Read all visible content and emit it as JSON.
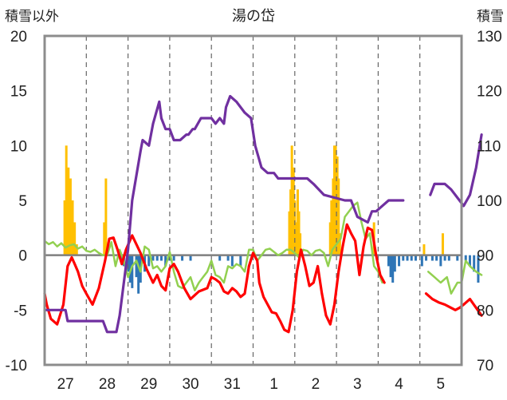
{
  "chart_data": {
    "type": "line",
    "title": "湯の岱",
    "left_axis": {
      "label": "積雪以外",
      "ylim": [
        -10,
        20
      ],
      "ticks": [
        "20",
        "15",
        "10",
        "5",
        "0",
        "-5",
        "-10"
      ]
    },
    "right_axis": {
      "label": "積雪",
      "ylim": [
        70,
        130
      ],
      "ticks": [
        "130",
        "120",
        "110",
        "100",
        "90",
        "80",
        "70"
      ]
    },
    "x_axis": {
      "xlim": [
        0,
        10
      ],
      "tick_labels": [
        "27",
        "28",
        "29",
        "30",
        "31",
        "1",
        "2",
        "3",
        "4",
        "5"
      ],
      "tick_positions": [
        0.5,
        1.5,
        2.5,
        3.5,
        4.5,
        5.5,
        6.5,
        7.5,
        8.5,
        9.5
      ]
    },
    "grid": "vertical dashed at day boundaries",
    "colors": {
      "snow_depth": "#7030a0",
      "temperature": "#ff0000",
      "dewpoint": "#92d050",
      "precip": "#ffc000",
      "negative_bars": "#2e75b6"
    },
    "series": [
      {
        "key": "snow_depth",
        "axis": "right",
        "x": [
          0.0,
          0.5,
          0.55,
          1.4,
          1.5,
          1.72,
          1.8,
          2.0,
          2.1,
          2.3,
          2.35,
          2.5,
          2.6,
          2.75,
          2.8,
          2.9,
          3.0,
          3.1,
          3.25,
          3.4,
          3.45,
          3.55,
          3.6,
          3.75,
          4.0,
          4.1,
          4.2,
          4.3,
          4.35,
          4.45,
          4.6,
          4.8,
          4.95,
          5.05,
          5.2,
          5.35,
          5.5,
          5.6,
          5.7,
          6.3,
          6.45,
          6.7,
          7.2,
          7.35,
          7.5,
          7.75,
          7.85,
          7.95,
          8.25,
          8.6
        ],
        "y": [
          80,
          80,
          78,
          78,
          76,
          76,
          79,
          91,
          100,
          109,
          111,
          110,
          114,
          118,
          115,
          113,
          113,
          111,
          111,
          112,
          112,
          113,
          113,
          115,
          115,
          114,
          115,
          114,
          117,
          119,
          118,
          116,
          115,
          110,
          106,
          105,
          105,
          104,
          104,
          104,
          103,
          101,
          100,
          100,
          97,
          96,
          98,
          98,
          100,
          100
        ]
      },
      {
        "key": "snow_depth_segment2",
        "axis": "right",
        "x": [
          9.25,
          9.35,
          9.6,
          9.75,
          9.95,
          10.05,
          10.2,
          10.35,
          10.48
        ],
        "y": [
          101,
          103,
          103,
          102,
          100,
          99,
          101,
          106,
          112
        ]
      },
      {
        "key": "temperature",
        "axis": "left",
        "x": [
          0.0,
          0.05,
          0.15,
          0.3,
          0.45,
          0.55,
          0.65,
          0.72,
          0.8,
          0.9,
          1.0,
          1.15,
          1.3,
          1.45,
          1.55,
          1.65,
          1.75,
          1.85,
          1.95,
          2.1,
          2.3,
          2.45,
          2.6,
          2.7,
          2.8,
          2.9,
          3.0,
          3.1,
          3.2,
          3.35,
          3.5,
          3.7,
          3.9,
          4.0,
          4.1,
          4.2,
          4.3,
          4.4,
          4.5,
          4.6,
          4.7,
          4.8,
          4.9,
          5.0,
          5.1,
          5.15,
          5.25,
          5.35,
          5.45,
          5.55,
          5.65,
          5.75,
          5.85,
          5.95,
          6.05,
          6.15,
          6.25,
          6.35,
          6.45,
          6.55,
          6.65,
          6.75,
          6.85,
          6.95,
          7.05,
          7.15,
          7.25,
          7.35,
          7.45,
          7.55,
          7.65,
          7.75,
          7.85,
          7.95,
          8.05,
          8.15
        ],
        "y": [
          -3.5,
          -4.5,
          -5.8,
          -6.3,
          -4.5,
          -1.0,
          -0.2,
          -0.8,
          -1.5,
          -2.8,
          -3.5,
          -4.5,
          -3.0,
          -0.5,
          1.5,
          1.6,
          0.5,
          -0.8,
          0.5,
          1.8,
          0.2,
          -1.3,
          -2.5,
          -1.8,
          -2.8,
          -3.2,
          -1.2,
          -0.8,
          -1.5,
          -3.0,
          -4.0,
          -3.3,
          -3.0,
          -2.0,
          -2.2,
          -2.5,
          -3.3,
          -3.5,
          -3.0,
          -3.3,
          -3.8,
          -3.5,
          -1.0,
          0.2,
          -0.5,
          -2.5,
          -3.8,
          -4.5,
          -5.2,
          -5.3,
          -6.0,
          -6.8,
          -7.0,
          -5.0,
          -1.5,
          0.5,
          -1.0,
          -2.8,
          -2.5,
          -1.0,
          -3.5,
          -5.5,
          -6.3,
          -4.5,
          -1.5,
          0.8,
          2.8,
          2.0,
          1.3,
          -1.8,
          0.8,
          2.5,
          2.3,
          0.0,
          -1.8,
          -2.5
        ]
      },
      {
        "key": "temperature_segment2",
        "axis": "left",
        "x": [
          9.15,
          9.3,
          9.45,
          9.6,
          9.75,
          9.85,
          9.95,
          10.05,
          10.2,
          10.35,
          10.48
        ],
        "y": [
          -3.5,
          -4.0,
          -4.3,
          -4.5,
          -4.8,
          -5.0,
          -4.8,
          -4.5,
          -4.0,
          -4.8,
          -5.5
        ]
      },
      {
        "key": "dewpoint",
        "axis": "left",
        "x": [
          0.0,
          0.1,
          0.2,
          0.3,
          0.4,
          0.5,
          0.6,
          0.7,
          0.8,
          0.9,
          1.0,
          1.1,
          1.2,
          1.3,
          1.4,
          1.5,
          1.6,
          1.7,
          1.8,
          1.9,
          2.0,
          2.1,
          2.2,
          2.3,
          2.4,
          2.5,
          2.6,
          2.7,
          2.8,
          2.9,
          3.0,
          3.1,
          3.2,
          3.3,
          3.4,
          3.5,
          3.6,
          3.7,
          3.8,
          3.9,
          4.0,
          4.1,
          4.2,
          4.3,
          4.4,
          4.5,
          4.6,
          4.7,
          4.8,
          4.9,
          5.0,
          5.1,
          5.2,
          5.3,
          5.4,
          5.5,
          5.6,
          5.7,
          5.8,
          5.9,
          6.0,
          6.1,
          6.2,
          6.3,
          6.4,
          6.5,
          6.6,
          6.7,
          6.8,
          6.9,
          7.0,
          7.1,
          7.2,
          7.3,
          7.4,
          7.5,
          7.6,
          7.7,
          7.8,
          7.9,
          8.0,
          8.1
        ],
        "y": [
          1.3,
          1.0,
          1.2,
          0.8,
          1.1,
          0.7,
          0.9,
          1.0,
          0.6,
          0.8,
          0.4,
          0.3,
          0.5,
          0.2,
          0.0,
          0.0,
          1.2,
          -1.0,
          0.5,
          -0.5,
          -2.0,
          -1.0,
          -0.5,
          -1.5,
          0.8,
          0.5,
          -1.2,
          -1.0,
          -1.5,
          -1.0,
          0.3,
          -1.5,
          -2.8,
          -3.0,
          -2.5,
          -2.0,
          -3.2,
          -2.5,
          -2.0,
          -1.5,
          -0.5,
          -1.8,
          -2.0,
          -2.5,
          -1.0,
          -1.2,
          -0.8,
          -1.0,
          -1.5,
          0.5,
          0.5,
          -0.5,
          0.0,
          0.5,
          0.6,
          0.3,
          0.0,
          0.2,
          0.5,
          0.5,
          0.2,
          -0.2,
          0.5,
          0.4,
          0.0,
          0.4,
          0.5,
          0.2,
          -1.0,
          0.5,
          1.0,
          1.5,
          3.5,
          4.0,
          4.5,
          4.8,
          3.0,
          1.5,
          2.0,
          -1.0,
          -1.5,
          -2.5
        ]
      },
      {
        "key": "dewpoint_segment2",
        "axis": "left",
        "x": [
          9.2,
          9.35,
          9.5,
          9.65,
          9.75,
          9.9,
          10.0,
          10.1,
          10.2,
          10.35,
          10.48
        ],
        "y": [
          -1.5,
          -2.0,
          -2.5,
          -2.0,
          -3.5,
          -2.5,
          -2.5,
          -0.5,
          -1.0,
          -1.5,
          -1.8
        ]
      }
    ],
    "bars_positive": {
      "axis": "left",
      "x": [
        0.48,
        0.52,
        0.57,
        0.62,
        0.67,
        0.72,
        0.77,
        1.43,
        1.47,
        1.5,
        5.87,
        5.9,
        5.93,
        5.97,
        6.0,
        6.03,
        6.07,
        6.1,
        6.13,
        6.85,
        6.88,
        6.92,
        6.95,
        6.98,
        7.02,
        7.05,
        7.08,
        7.9,
        9.1,
        9.55
      ],
      "y": [
        5,
        10,
        8,
        7,
        5,
        3,
        1,
        3,
        7,
        1,
        4,
        6,
        10,
        8,
        5,
        3,
        6,
        4,
        2,
        3,
        5,
        7,
        10,
        10,
        9,
        7,
        2,
        3,
        1,
        2
      ]
    },
    "bars_negative": {
      "axis": "left",
      "x": [
        1.85,
        1.9,
        2.0,
        2.05,
        2.1,
        2.2,
        2.25,
        2.3,
        2.4,
        2.5,
        2.6,
        2.7,
        2.8,
        2.9,
        3.0,
        3.1,
        3.3,
        3.5,
        4.2,
        4.4,
        4.5,
        4.7,
        8.25,
        8.3,
        8.35,
        8.4,
        8.5,
        8.6,
        8.7,
        8.8,
        8.9,
        9.05,
        9.15,
        9.3,
        9.4,
        9.5,
        9.6,
        9.7,
        9.9,
        10.1,
        10.2,
        10.3,
        10.4
      ],
      "y": [
        -0.5,
        -1.0,
        -1.5,
        -2.5,
        -3.0,
        -2.0,
        -3.5,
        -2.5,
        -1.5,
        -1.0,
        -0.5,
        -0.5,
        -0.5,
        -1.0,
        -0.5,
        -0.5,
        -0.5,
        -0.5,
        -0.5,
        -0.5,
        -1.0,
        -1.0,
        -1.0,
        -2.0,
        -2.5,
        -1.5,
        -1.0,
        -0.5,
        -0.5,
        -0.5,
        -0.5,
        -1.0,
        -0.5,
        -0.5,
        -0.5,
        -1.0,
        -0.5,
        -0.5,
        -0.5,
        -0.5,
        -1.0,
        -1.5,
        -2.5
      ]
    }
  }
}
